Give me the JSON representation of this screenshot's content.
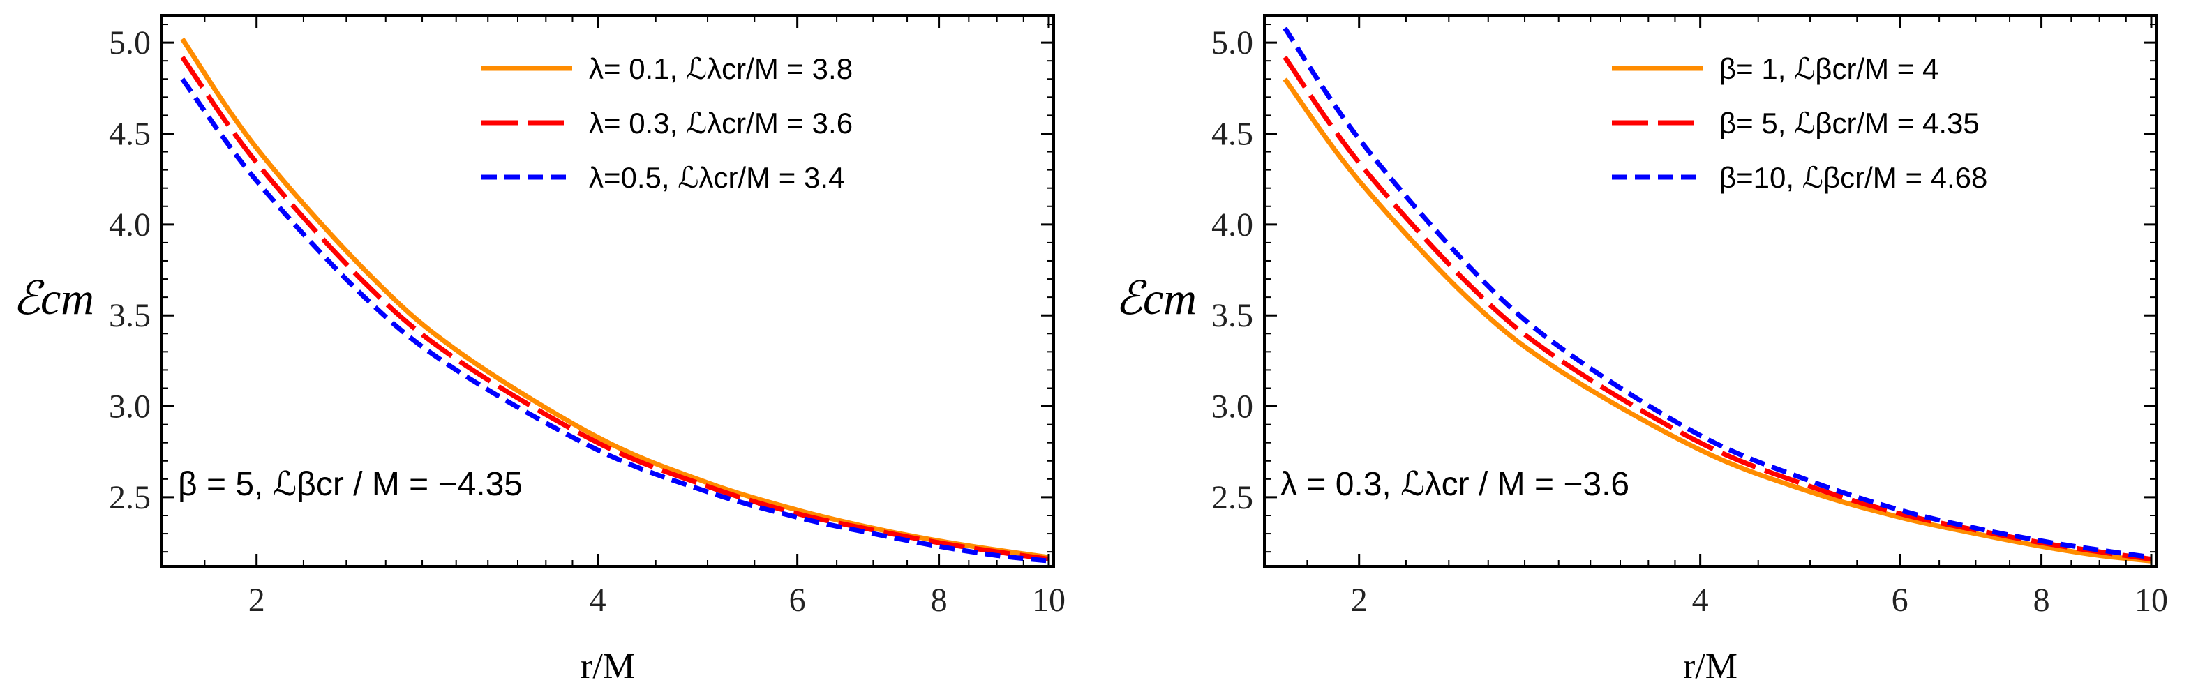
{
  "chart_data": [
    {
      "type": "line",
      "xlabel": "r/M",
      "ylabel": "ℰcm",
      "xlim": [
        1.65,
        10.1
      ],
      "ylim": [
        2.12,
        5.15
      ],
      "x_scale": "log",
      "xticks": [
        2,
        4,
        6,
        8,
        10
      ],
      "xtick_labels": [
        "2",
        "4",
        "6",
        "8",
        "10"
      ],
      "yticks": [
        2.5,
        3.0,
        3.5,
        4.0,
        4.5,
        5.0
      ],
      "ytick_labels": [
        "2.5",
        "3.0",
        "3.5",
        "4.0",
        "4.5",
        "5.0"
      ],
      "legend_position": "top-right",
      "annotation": "β = 5, ℒβcr / M = −4.35",
      "x": [
        1.72,
        2,
        2.5,
        3,
        4,
        5,
        6,
        7,
        8,
        9,
        10
      ],
      "series": [
        {
          "name": "λ= 0.1, ℒλcr/M = 3.8",
          "color": "#ff8c00",
          "style": "solid",
          "values": [
            5.02,
            4.42,
            3.74,
            3.31,
            2.83,
            2.58,
            2.43,
            2.33,
            2.26,
            2.21,
            2.17
          ]
        },
        {
          "name": "λ= 0.3, ℒλcr/M = 3.6",
          "color": "#ff0000",
          "style": "longdash",
          "values": [
            4.92,
            4.34,
            3.67,
            3.26,
            2.8,
            2.56,
            2.41,
            2.32,
            2.25,
            2.2,
            2.16
          ]
        },
        {
          "name": "λ=0.5, ℒλcr/M = 3.4",
          "color": "#0000ff",
          "style": "dash",
          "values": [
            4.8,
            4.24,
            3.59,
            3.2,
            2.76,
            2.53,
            2.39,
            2.3,
            2.23,
            2.18,
            2.15
          ]
        }
      ]
    },
    {
      "type": "line",
      "xlabel": "r/M",
      "ylabel": "ℰcm",
      "xlim": [
        1.65,
        10.1
      ],
      "ylim": [
        2.12,
        5.15
      ],
      "x_scale": "log",
      "xticks": [
        2,
        4,
        6,
        8,
        10
      ],
      "xtick_labels": [
        "2",
        "4",
        "6",
        "8",
        "10"
      ],
      "yticks": [
        2.5,
        3.0,
        3.5,
        4.0,
        4.5,
        5.0
      ],
      "ytick_labels": [
        "2.5",
        "3.0",
        "3.5",
        "4.0",
        "4.5",
        "5.0"
      ],
      "legend_position": "top-right",
      "annotation": "λ = 0.3, ℒλcr / M = −3.6",
      "x": [
        1.72,
        2,
        2.5,
        3,
        4,
        5,
        6,
        7,
        8,
        9,
        10
      ],
      "series": [
        {
          "name": "β=  1, ℒβcr/M = 4",
          "color": "#ff8c00",
          "style": "solid",
          "values": [
            4.8,
            4.24,
            3.59,
            3.2,
            2.76,
            2.53,
            2.39,
            2.3,
            2.23,
            2.18,
            2.15
          ]
        },
        {
          "name": "β=  5, ℒβcr/M = 4.35",
          "color": "#ff0000",
          "style": "longdash",
          "values": [
            4.92,
            4.34,
            3.67,
            3.26,
            2.8,
            2.56,
            2.41,
            2.32,
            2.25,
            2.2,
            2.16
          ]
        },
        {
          "name": "β=10, ℒβcr/M = 4.68",
          "color": "#0000ff",
          "style": "dash",
          "values": [
            5.08,
            4.47,
            3.77,
            3.33,
            2.84,
            2.59,
            2.43,
            2.33,
            2.26,
            2.21,
            2.17
          ]
        }
      ]
    }
  ]
}
